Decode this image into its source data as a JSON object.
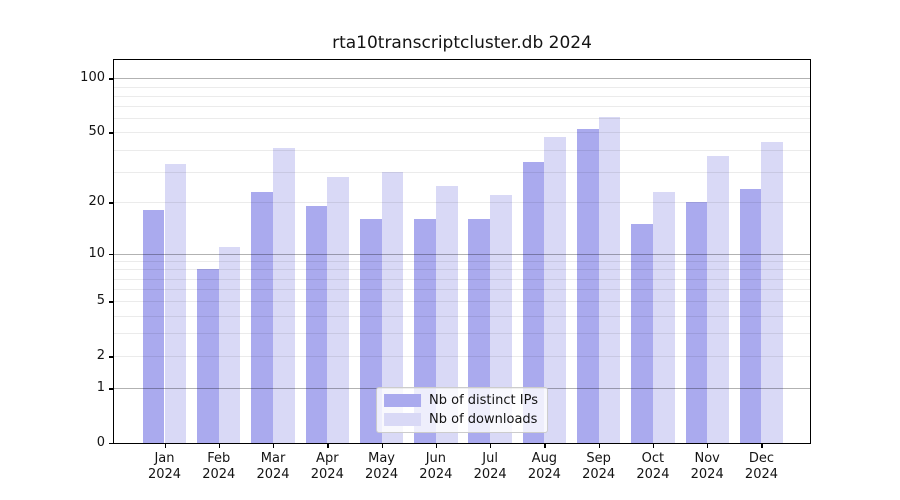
{
  "chart_data": {
    "type": "bar",
    "title": "rta10transcriptcluster.db 2024",
    "categories": [
      "Jan 2024",
      "Feb 2024",
      "Mar 2024",
      "Apr 2024",
      "May 2024",
      "Jun 2024",
      "Jul 2024",
      "Aug 2024",
      "Sep 2024",
      "Oct 2024",
      "Nov 2024",
      "Dec 2024"
    ],
    "series": [
      {
        "name": "Nb of distinct IPs",
        "color": "#aaaaee",
        "values": [
          18,
          8,
          23,
          19,
          16,
          16,
          16,
          34,
          52,
          15,
          20,
          24
        ]
      },
      {
        "name": "Nb of downloads",
        "color": "#d9d9f6",
        "values": [
          33,
          11,
          41,
          28,
          30,
          25,
          22,
          47,
          61,
          23,
          37,
          44
        ]
      }
    ],
    "yscale": "log1p",
    "ylim": [
      0,
      129
    ],
    "yticks": [
      0,
      1,
      2,
      5,
      10,
      20,
      50,
      100
    ],
    "major_gridlines": [
      1,
      10,
      100
    ],
    "minor_gridlines": [
      2,
      3,
      4,
      5,
      6,
      7,
      8,
      9,
      20,
      30,
      40,
      50,
      60,
      70,
      80,
      90
    ],
    "grid_color_major": "rgba(0,0,0,0.30)",
    "grid_color_minor": "rgba(0,0,0,0.08)",
    "legend_position": "lower center",
    "axis_color": "#000000"
  }
}
